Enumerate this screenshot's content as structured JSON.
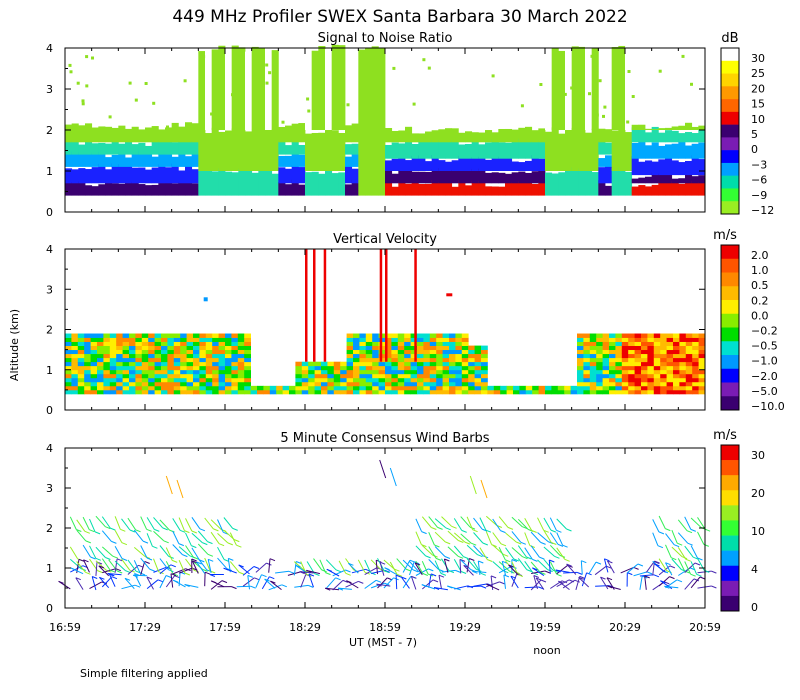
{
  "figure_title": "449 MHz Profiler SWEX Santa Barbara 30 March 2022",
  "y_axis_label": "Altitude (km)",
  "x_axis_label": "UT  (MST - 7)",
  "noon_label": "noon",
  "footnote": "Simple filtering applied",
  "chart_data": [
    {
      "type": "heatmap",
      "title": "Signal to Noise Ratio",
      "colorbar_unit": "dB",
      "colorbar_labels": [
        "30",
        "25",
        "20",
        "15",
        "10",
        "5",
        "0",
        "−3",
        "−6",
        "−9",
        "−12"
      ],
      "colorbar_colors": [
        "#ffffff",
        "#ffff00",
        "#ffd400",
        "#ff9900",
        "#ff6600",
        "#ee0000",
        "#3a0070",
        "#7a1cb4",
        "#0000ff",
        "#00a0ff",
        "#00ddaa",
        "#33ff33",
        "#99ee22"
      ],
      "x_tick_labels": [
        "16:59",
        "17:29",
        "17:59",
        "18:29",
        "18:59",
        "19:29",
        "19:59",
        "20:29",
        "20:59"
      ],
      "y_tick_labels": [
        "0",
        "1",
        "2",
        "3",
        "4"
      ],
      "ylim": [
        0,
        4
      ]
    },
    {
      "type": "heatmap",
      "title": "Vertical Velocity",
      "colorbar_unit": "m/s",
      "colorbar_labels": [
        "2.0",
        "1.0",
        "0.5",
        "0.2",
        "0.0",
        "−0.2",
        "−0.5",
        "−1.0",
        "−2.0",
        "−5.0",
        "−10.0"
      ],
      "colorbar_colors": [
        "#ee0000",
        "#ff5500",
        "#ff8800",
        "#ffbb00",
        "#ffee00",
        "#88ee00",
        "#00dd00",
        "#00e0d0",
        "#0099ff",
        "#0000ff",
        "#7a1cb4",
        "#3a0070"
      ],
      "y_tick_labels": [
        "0",
        "1",
        "2",
        "3",
        "4"
      ],
      "ylim": [
        0,
        4
      ]
    },
    {
      "type": "scatter",
      "title": "5 Minute Consensus Wind Barbs",
      "colorbar_unit": "m/s",
      "colorbar_labels": [
        "30",
        "20",
        "10",
        "4",
        "0"
      ],
      "colorbar_colors": [
        "#ee0000",
        "#ff5500",
        "#ffaa00",
        "#ffdd00",
        "#99ee22",
        "#33ff33",
        "#00ddaa",
        "#00a0ff",
        "#0000ff",
        "#7a1cb4",
        "#3a0070"
      ],
      "y_tick_labels": [
        "0",
        "1",
        "2",
        "3",
        "4"
      ],
      "ylim": [
        0,
        4
      ]
    }
  ]
}
